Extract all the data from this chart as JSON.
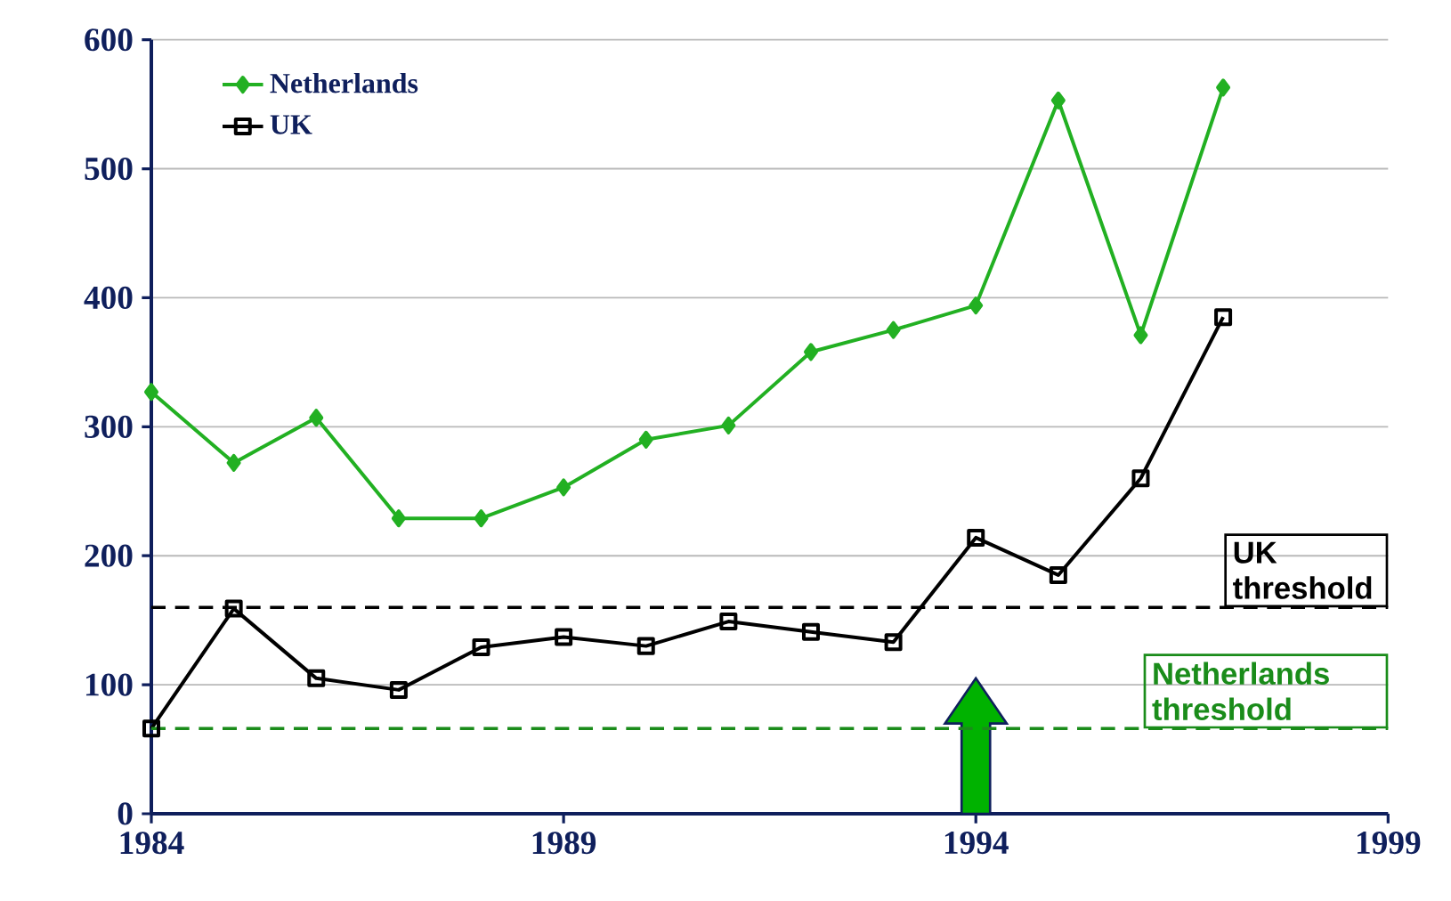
{
  "chart_data": {
    "type": "line",
    "x": [
      1984,
      1985,
      1986,
      1987,
      1988,
      1989,
      1990,
      1991,
      1992,
      1993,
      1994,
      1995,
      1996,
      1997
    ],
    "series": [
      {
        "name": "Netherlands",
        "color": "#22b022",
        "marker": "diamond",
        "values": [
          327,
          272,
          307,
          229,
          229,
          253,
          290,
          301,
          358,
          375,
          394,
          553,
          371,
          563
        ]
      },
      {
        "name": "UK",
        "color": "#000000",
        "marker": "square",
        "values": [
          66,
          159,
          105,
          96,
          129,
          137,
          130,
          149,
          141,
          133,
          214,
          185,
          260,
          385
        ]
      }
    ],
    "xlim": [
      1984,
      1999
    ],
    "xticks": [
      1984,
      1989,
      1994,
      1999
    ],
    "ylim": [
      0,
      600
    ],
    "yticks": [
      0,
      100,
      200,
      300,
      400,
      500,
      600
    ],
    "grid": "y",
    "legend": "top left",
    "line_style": "solid",
    "ref_lines": [
      {
        "axis": "y",
        "value": 160,
        "label": "UK threshold",
        "color": "#000000",
        "line_style": "dashed"
      },
      {
        "axis": "y",
        "value": 66,
        "label": "Netherlands threshold",
        "color": "#1a8c1a",
        "line_style": "dashed"
      }
    ]
  }
}
